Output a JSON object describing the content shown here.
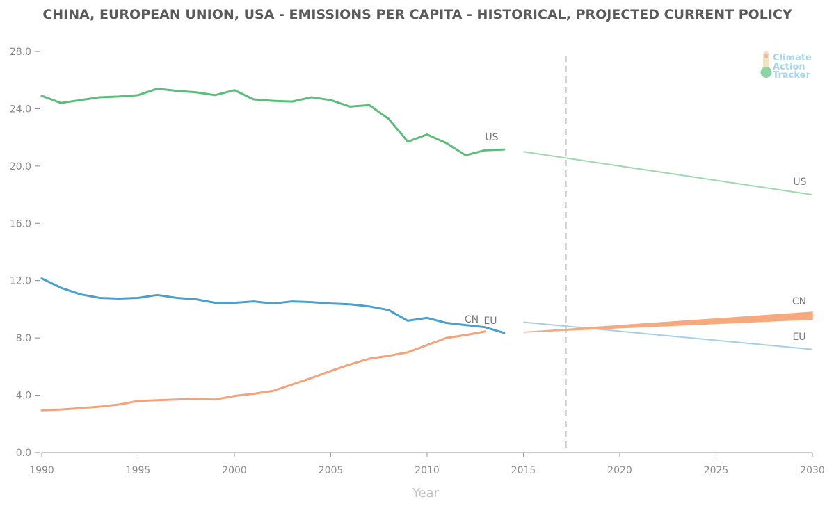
{
  "chart_data": {
    "type": "line",
    "title": "CHINA, EUROPEAN UNION, USA - EMISSIONS PER CAPITA - HISTORICAL, PROJECTED CURRENT POLICY",
    "xlabel": "Year",
    "ylabel": "",
    "xlim": [
      1990,
      2030
    ],
    "ylim": [
      0,
      28
    ],
    "x_ticks": [
      "1990",
      "1995",
      "2000",
      "2005",
      "2010",
      "2015",
      "2020",
      "2025",
      "2030"
    ],
    "y_ticks": [
      "0.0",
      "4.0",
      "8.0",
      "12.0",
      "16.0",
      "20.0",
      "24.0",
      "28.0"
    ],
    "grid": false,
    "marker_line_year": 2017.2,
    "historical": [
      {
        "name": "US",
        "color": "#5cbd7a",
        "x": [
          1990,
          1991,
          1992,
          1993,
          1994,
          1995,
          1996,
          1997,
          1998,
          1999,
          2000,
          2001,
          2002,
          2003,
          2004,
          2005,
          2006,
          2007,
          2008,
          2009,
          2010,
          2011,
          2012,
          2013,
          2014
        ],
        "values": [
          24.9,
          24.4,
          24.6,
          24.8,
          24.85,
          24.95,
          25.4,
          25.25,
          25.15,
          24.95,
          25.3,
          24.65,
          24.55,
          24.5,
          24.8,
          24.6,
          24.15,
          24.25,
          23.3,
          21.7,
          22.2,
          21.6,
          20.75,
          21.1,
          21.15
        ]
      },
      {
        "name": "EU",
        "color": "#4a9fcb",
        "x": [
          1990,
          1991,
          1992,
          1993,
          1994,
          1995,
          1996,
          1997,
          1998,
          1999,
          2000,
          2001,
          2002,
          2003,
          2004,
          2005,
          2006,
          2007,
          2008,
          2009,
          2010,
          2011,
          2012,
          2013,
          2014
        ],
        "values": [
          12.15,
          11.5,
          11.05,
          10.8,
          10.75,
          10.8,
          11.0,
          10.8,
          10.7,
          10.45,
          10.45,
          10.55,
          10.4,
          10.55,
          10.5,
          10.4,
          10.35,
          10.2,
          9.95,
          9.2,
          9.4,
          9.05,
          8.9,
          8.75,
          8.35
        ]
      },
      {
        "name": "CN",
        "color": "#f4a27a",
        "x": [
          1990,
          1991,
          1992,
          1993,
          1994,
          1995,
          1996,
          1997,
          1998,
          1999,
          2000,
          2001,
          2002,
          2003,
          2004,
          2005,
          2006,
          2007,
          2008,
          2009,
          2010,
          2011,
          2012,
          2013
        ],
        "values": [
          2.95,
          3.0,
          3.1,
          3.2,
          3.35,
          3.6,
          3.65,
          3.7,
          3.75,
          3.7,
          3.95,
          4.1,
          4.3,
          4.75,
          5.2,
          5.7,
          6.15,
          6.55,
          6.75,
          7.0,
          7.5,
          8.0,
          8.2,
          8.45
        ]
      }
    ],
    "projections": [
      {
        "name": "US",
        "color": "#9fd8b0",
        "x": [
          2015,
          2030
        ],
        "values": [
          21.0,
          18.0
        ]
      },
      {
        "name": "EU",
        "color": "#a6cfe6",
        "x": [
          2015,
          2030
        ],
        "values": [
          9.1,
          7.2
        ]
      },
      {
        "name": "CN",
        "color": "#f6a97f",
        "x": [
          2015,
          2030
        ],
        "low": [
          8.4,
          9.3
        ],
        "high": [
          8.4,
          9.8
        ]
      }
    ],
    "labels": {
      "us_hist": "US",
      "cn_hist": "CN",
      "eu_hist": "EU",
      "us_proj": "US",
      "cn_proj": "CN",
      "eu_proj": "EU"
    }
  },
  "logo": {
    "line1": "Climate",
    "line2": "Action",
    "line3": "Tracker",
    "text_color": "#a9d6ea"
  }
}
